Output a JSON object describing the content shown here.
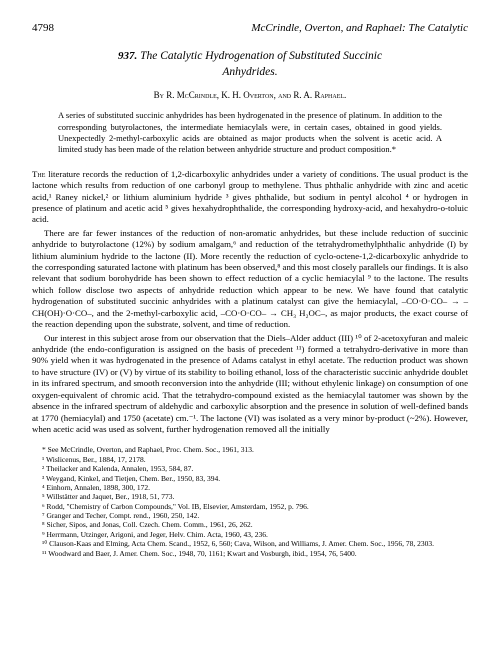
{
  "page_number": "4798",
  "running_head": "McCrindle, Overton, and Raphael: The Catalytic",
  "article_number": "937.",
  "title_line1": "The Catalytic Hydrogenation of Substituted Succinic",
  "title_line2": "Anhydrides.",
  "authors": "By R. McCrindle, K. H. Overton, and R. A. Raphael.",
  "abstract": "A series of substituted succinic anhydrides has been hydrogenated in the presence of platinum. In addition to the corresponding butyrolactones, the intermediate hemiacylals were, in certain cases, obtained in good yields. Unexpectedly 2-methyl-carboxylic acids are obtained as major products when the solvent is acetic acid. A limited study has been made of the relation between anhydride structure and product composition.*",
  "para1": "THE literature records the reduction of 1,2-dicarboxylic anhydrides under a variety of conditions. The usual product is the lactone which results from reduction of one carbonyl group to methylene. Thus phthalic anhydride with zinc and acetic acid,¹ Raney nickel,² or lithium aluminium hydride ³ gives phthalide, but sodium in pentyl alcohol ⁴ or hydrogen in presence of platinum and acetic acid ⁵ gives hexahydrophthalide, the corresponding hydroxy-acid, and hexahydro-o-toluic acid.",
  "para2": "There are far fewer instances of the reduction of non-aromatic anhydrides, but these include reduction of succinic anhydride to butyrolactone (12%) by sodium amalgam,⁶ and reduction of the tetrahydromethylphthalic anhydride (I) by lithium aluminium hydride to the lactone (II). More recently the reduction of cyclo-octene-1,2-dicarboxylic anhydride to the corresponding saturated lactone with platinum has been observed,⁸ and this most closely parallels our findings. It is also relevant that sodium borohydride has been shown to effect reduction of a cyclic hemiacylal ⁹ to the lactone. The results which follow disclose two aspects of anhydride reduction which appear to be new. We have found that catalytic hydrogenation of substituted succinic anhydrides with a platinum catalyst can give the hemiacylal, –CO·O·CO– → –CH(OH)·O·CO–, and the 2-methyl-carboxylic acid, –CO·O·CO– → CH₃ H₂OC–, as major products, the exact course of the reaction depending upon the substrate, solvent, and time of reduction.",
  "para3": "Our interest in this subject arose from our observation that the Diels–Alder adduct (III) ¹⁰ of 2-acetoxyfuran and maleic anhydride (the endo-configuration is assigned on the basis of precedent ¹¹) formed a tetrahydro-derivative in more than 90% yield when it was hydrogenated in the presence of Adams catalyst in ethyl acetate. The reduction product was shown to have structure (IV) or (V) by virtue of its stability to boiling ethanol, loss of the characteristic succinic anhydride doublet in its infrared spectrum, and smooth reconversion into the anhydride (III; without ethylenic linkage) on consumption of one oxygen-equivalent of chromic acid. That the tetrahydro-compound existed as the hemiacylal tautomer was shown by the absence in the infrared spectrum of aldehydic and carboxylic absorption and the presence in solution of well-defined bands at 1770 (hemiacylal) and 1750 (acetate) cm.⁻¹. The lactone (VI) was isolated as a very minor by-product (~2%). However, when acetic acid was used as solvent, further hydrogenation removed all the initially",
  "footnotes": [
    "* See McCrindle, Overton, and Raphael, Proc. Chem. Soc., 1961, 313.",
    "¹ Wislicenus, Ber., 1884, 17, 2178.",
    "² Theilacker and Kalenda, Annalen, 1953, 584, 87.",
    "³ Weygand, Kinkel, and Tietjen, Chem. Ber., 1950, 83, 394.",
    "⁴ Einhorn, Annalen, 1898, 300, 172.",
    "⁵ Willstätter and Jaquet, Ber., 1918, 51, 773.",
    "⁶ Rodd, \"Chemistry of Carbon Compounds,\" Vol. IB, Elsevier, Amsterdam, 1952, p. 796.",
    "⁷ Granger and Techer, Compt. rend., 1960, 250, 142.",
    "⁸ Sicher, Sipos, and Jonas, Coll. Czech. Chem. Comm., 1961, 26, 262.",
    "⁹ Herrmann, Utzinger, Arigoni, and Jeger, Helv. Chim. Acta, 1960, 43, 236.",
    "¹⁰ Clauson-Kaas and Elming, Acta Chem. Scand., 1952, 6, 560; Cava, Wilson, and Williams, J. Amer. Chem. Soc., 1956, 78, 2303.",
    "¹¹ Woodward and Baer, J. Amer. Chem. Soc., 1948, 70, 1161; Kwart and Vosburgh, ibid., 1954, 76, 5400."
  ]
}
